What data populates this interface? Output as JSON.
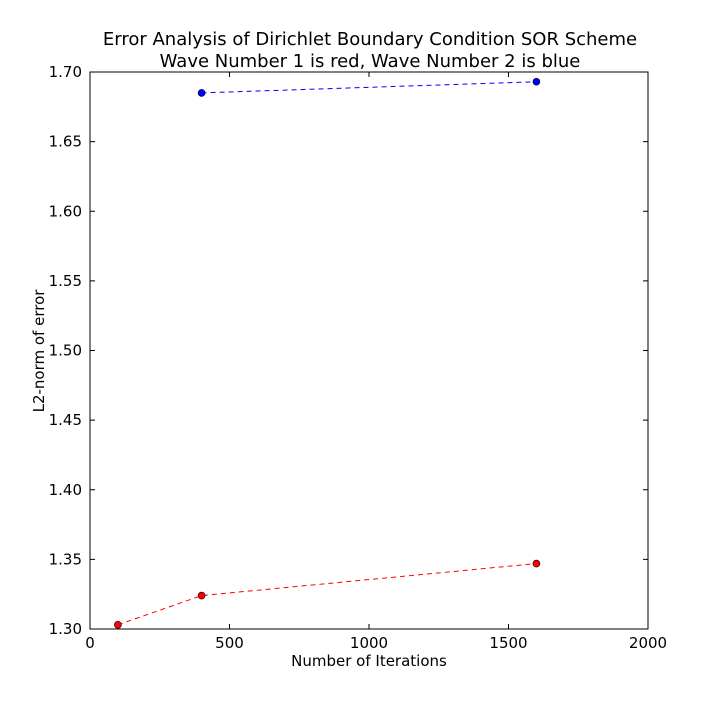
{
  "chart_data": {
    "type": "line",
    "title": "Error Analysis of Dirichlet Boundary Condition SOR Scheme",
    "subtitle": "Wave Number 1 is red, Wave Number 2 is blue",
    "xlabel": "Number of Iterations",
    "ylabel": "L2-norm of error",
    "xlim": [
      0,
      2000
    ],
    "ylim": [
      1.3,
      1.7
    ],
    "xticks": [
      "0",
      "500",
      "1000",
      "1500",
      "2000"
    ],
    "yticks": [
      "1.30",
      "1.35",
      "1.40",
      "1.45",
      "1.50",
      "1.55",
      "1.60",
      "1.65",
      "1.70"
    ],
    "grid": false,
    "legend": "none",
    "series": [
      {
        "color": "#ff0000",
        "line_style": "dashed",
        "marker": "circle",
        "x": [
          100,
          400,
          1600
        ],
        "y": [
          1.303,
          1.324,
          1.347
        ]
      },
      {
        "color": "#0000ff",
        "line_style": "dashed",
        "marker": "circle",
        "x": [
          400,
          1600
        ],
        "y": [
          1.685,
          1.693
        ]
      }
    ]
  }
}
